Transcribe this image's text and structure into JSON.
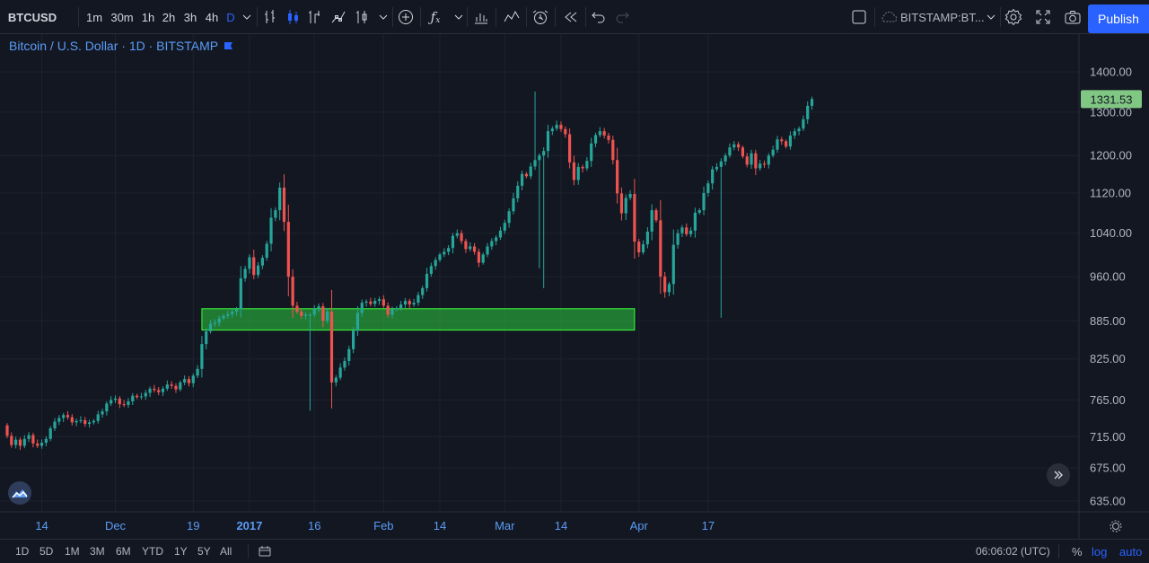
{
  "toolbar": {
    "symbol": "BTCUSD",
    "intervals": [
      "1m",
      "30m",
      "1h",
      "2h",
      "3h",
      "4h",
      "D"
    ],
    "active_interval": "D",
    "exchange_label": "BITSTAMP:BT...",
    "publish_label": "Publish",
    "icons": [
      "bar-style-icon",
      "candles-icon",
      "indicator-icon",
      "templates-icon",
      "compare-icon",
      "dropdown-icon",
      "add-icon",
      "fx-icon",
      "chart-type-icon",
      "strategy-icon",
      "alert-icon",
      "replay-icon",
      "undo-icon",
      "redo-icon",
      "layout-icon",
      "cloud-icon",
      "settings-icon",
      "fullscreen-icon",
      "camera-icon"
    ]
  },
  "legend": {
    "title": "Bitcoin / U.S. Dollar · 1D · BITSTAMP"
  },
  "price_scale": {
    "labels": [
      "1400.00",
      "1300.00",
      "1200.00",
      "1120.00",
      "1040.00",
      "960.00",
      "885.00",
      "825.00",
      "765.00",
      "715.00",
      "675.00",
      "635.00"
    ],
    "last_price": "1331.53",
    "last_price_color": "#4caf50"
  },
  "time_scale": {
    "labels": [
      "14",
      "Dec",
      "19",
      "2017",
      "16",
      "Feb",
      "14",
      "Mar",
      "14",
      "Apr",
      "17"
    ]
  },
  "bottom": {
    "ranges": [
      "1D",
      "5D",
      "1M",
      "3M",
      "6M",
      "YTD",
      "1Y",
      "5Y",
      "All"
    ],
    "clock": "06:06:02 (UTC)",
    "percent_label": "%",
    "log_label": "log",
    "auto_label": "auto"
  },
  "colors": {
    "background": "#131722",
    "up": "#26a69a",
    "down": "#ef5350",
    "zone_fill": "#2ecc40",
    "accent": "#2962ff"
  },
  "chart_data": {
    "type": "candlestick",
    "symbol": "BTCUSD",
    "interval": "1D",
    "exchange": "BITSTAMP",
    "log_scale": true,
    "grid": true,
    "ylim": [
      620,
      1450
    ],
    "date_range": [
      "2016-11-06",
      "2017-04-22"
    ],
    "highlight_zone": {
      "from_date": "2016-12-21",
      "to_date": "2017-03-31",
      "low": 870,
      "high": 905
    },
    "last_price": 1331.53,
    "closes": [
      716,
      704,
      711,
      703,
      712,
      717,
      706,
      703,
      707,
      712,
      726,
      735,
      740,
      744,
      741,
      734,
      736,
      737,
      732,
      734,
      736,
      745,
      749,
      760,
      765,
      767,
      759,
      758,
      763,
      771,
      769,
      770,
      775,
      781,
      779,
      776,
      781,
      787,
      785,
      780,
      790,
      795,
      789,
      800,
      810,
      848,
      868,
      880,
      882,
      889,
      893,
      896,
      900,
      904,
      957,
      974,
      995,
      963,
      980,
      994,
      1020,
      1070,
      1085,
      1131,
      1062,
      960,
      910,
      900,
      893,
      895,
      895,
      905,
      909,
      885,
      900,
      790,
      797,
      812,
      822,
      840,
      869,
      898,
      915,
      917,
      913,
      918,
      921,
      910,
      895,
      904,
      906,
      912,
      918,
      912,
      915,
      928,
      940,
      965,
      979,
      990,
      1000,
      1005,
      1012,
      1035,
      1040,
      1025,
      1010,
      1015,
      1005,
      985,
      1000,
      1015,
      1025,
      1032,
      1045,
      1060,
      1083,
      1109,
      1135,
      1160,
      1155,
      1176,
      1190,
      1200,
      1210,
      1255,
      1261,
      1270,
      1260,
      1248,
      1185,
      1147,
      1175,
      1172,
      1188,
      1227,
      1246,
      1255,
      1245,
      1235,
      1190,
      1119,
      1079,
      1110,
      1118,
      1024,
      1004,
      1019,
      1043,
      1085,
      1065,
      960,
      933,
      947,
      1018,
      1040,
      1051,
      1038,
      1045,
      1080,
      1085,
      1120,
      1140,
      1170,
      1175,
      1187,
      1200,
      1218,
      1225,
      1218,
      1198,
      1180,
      1205,
      1172,
      1182,
      1180,
      1200,
      1213,
      1236,
      1232,
      1220,
      1245,
      1255,
      1261,
      1283,
      1315,
      1331.53
    ]
  }
}
